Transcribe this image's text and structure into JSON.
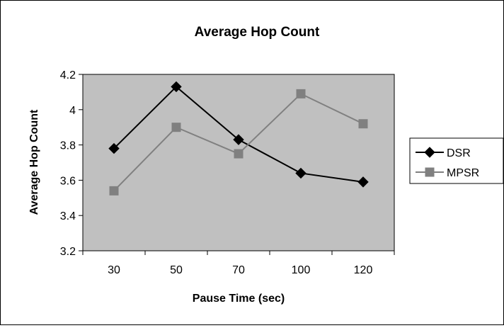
{
  "chart_data": {
    "type": "line",
    "title": "Average Hop Count",
    "xlabel": "Pause Time (sec)",
    "ylabel": "Average Hop Count",
    "categories": [
      "30",
      "50",
      "70",
      "100",
      "120"
    ],
    "ylim": [
      3.2,
      4.2
    ],
    "yticks": [
      "3.2",
      "3.4",
      "3.6",
      "3.8",
      "4",
      "4.2"
    ],
    "grid": false,
    "legend_position": "right",
    "plot_background": "#c0c0c0",
    "series": [
      {
        "name": "DSR",
        "values": [
          3.78,
          4.13,
          3.83,
          3.64,
          3.59
        ],
        "color": "#000000",
        "marker": "diamond"
      },
      {
        "name": "MPSR",
        "values": [
          3.54,
          3.9,
          3.75,
          4.09,
          3.92
        ],
        "color": "#808080",
        "marker": "square"
      }
    ]
  }
}
